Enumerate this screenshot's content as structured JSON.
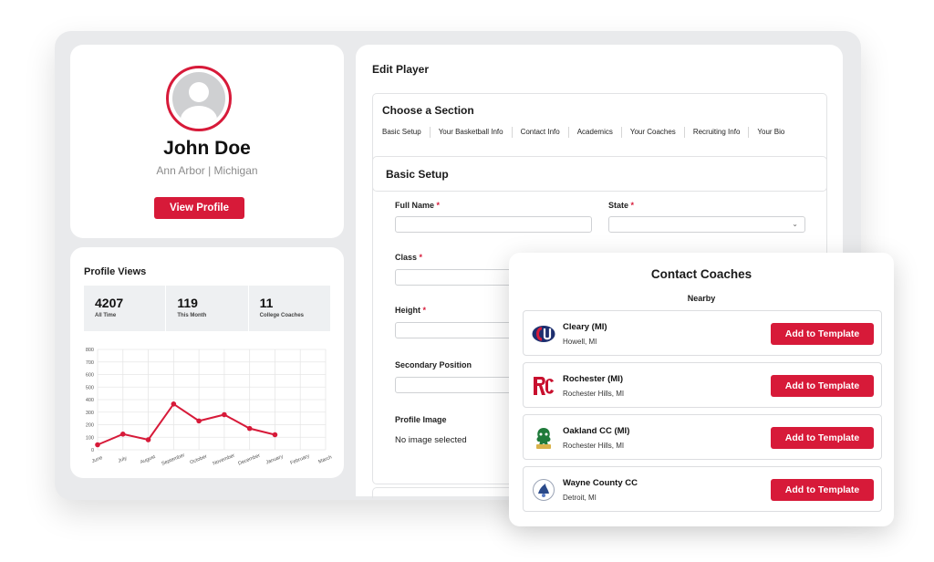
{
  "profile": {
    "name": "John Doe",
    "location": "Ann Arbor |  Michigan",
    "view_button": "View Profile"
  },
  "profile_views": {
    "title": "Profile Views",
    "stats": [
      {
        "value": "4207",
        "label": "All Time"
      },
      {
        "value": "119",
        "label": "This Month"
      },
      {
        "value": "11",
        "label": "College Coaches"
      }
    ]
  },
  "chart_data": {
    "type": "line",
    "categories": [
      "June",
      "July",
      "August",
      "September",
      "October",
      "November",
      "December",
      "January",
      "February",
      "March"
    ],
    "values": [
      40,
      125,
      80,
      365,
      230,
      280,
      170,
      120,
      null,
      null
    ],
    "ylim": [
      0,
      800
    ],
    "yticks": [
      "0",
      "100",
      "200",
      "300",
      "400",
      "500",
      "600",
      "700",
      "800"
    ],
    "grid": true,
    "color": "#d71a39"
  },
  "edit": {
    "title": "Edit Player",
    "choose_section_title": "Choose a Section",
    "tabs": [
      "Basic Setup",
      "Your Basketball Info",
      "Contact Info",
      "Academics",
      "Your Coaches",
      "Recruiting Info",
      "Your Bio"
    ],
    "basic_setup_title": "Basic Setup",
    "fields": {
      "full_name": "Full Name",
      "state": "State",
      "class": "Class",
      "height": "Height",
      "secondary_position": "Secondary Position",
      "profile_image": "Profile Image",
      "required_mark": "*"
    },
    "no_image": "No image selected"
  },
  "coaches": {
    "title": "Contact Coaches",
    "subtitle": "Nearby",
    "button_label": "Add to Template",
    "items": [
      {
        "name": "Cleary (MI)",
        "city": "Howell, MI",
        "logo": "cleary-logo"
      },
      {
        "name": "Rochester (MI)",
        "city": "Rochester Hills, MI",
        "logo": "rochester-logo"
      },
      {
        "name": "Oakland CC (MI)",
        "city": "Rochester Hills, MI",
        "logo": "oakland-logo"
      },
      {
        "name": "Wayne County CC",
        "city": "Detroit, MI",
        "logo": "wayne-logo"
      }
    ]
  },
  "colors": {
    "accent": "#d71a39",
    "frame": "#e9eaec"
  }
}
